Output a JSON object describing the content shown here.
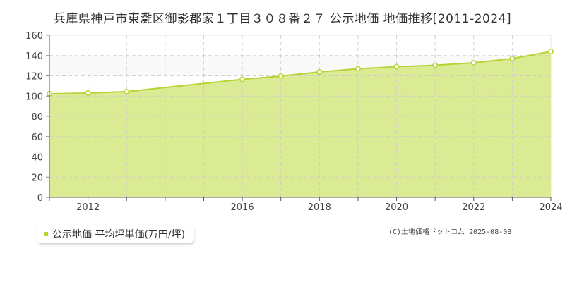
{
  "title": "兵庫県神戸市東灘区御影郡家１丁目３０８番２７ 公示地価 地価推移[2011-2024]",
  "legend": {
    "label": "公示地価 平均坪単価(万円/坪)",
    "color": "#b5d334"
  },
  "credit": "(C)土地価格ドットコム 2025-08-08",
  "colors": {
    "line": "#b5d334",
    "fill": "#dbeb94",
    "grid": "#cccccc",
    "axis": "#555555",
    "band": "#f9f9f9"
  },
  "chart_data": {
    "type": "area",
    "title": "兵庫県神戸市東灘区御影郡家１丁目３０８番２７ 公示地価 地価推移[2011-2024]",
    "xlabel": "",
    "ylabel": "",
    "x": [
      2011,
      2012,
      2013,
      2014,
      2015,
      2016,
      2017,
      2018,
      2019,
      2020,
      2021,
      2022,
      2023,
      2024
    ],
    "series": [
      {
        "name": "公示地価 平均坪単価(万円/坪)",
        "values": [
          102.3,
          103.0,
          104.4,
          116.5,
          119.7,
          123.8,
          127.0,
          129.0,
          130.4,
          132.9,
          137.0,
          144.0
        ]
      }
    ],
    "series_x": [
      2011,
      2012,
      2013,
      2016,
      2017,
      2018,
      2019,
      2020,
      2021,
      2022,
      2023,
      2024
    ],
    "xticks": [
      "2012",
      "2016",
      "2018",
      "2020",
      "2022",
      "2024"
    ],
    "yticks": [
      0,
      20,
      40,
      60,
      80,
      100,
      120,
      140,
      160
    ],
    "xlim": [
      2011,
      2024
    ],
    "ylim": [
      0,
      160
    ],
    "grid": true,
    "legend_position": "bottom-left"
  }
}
